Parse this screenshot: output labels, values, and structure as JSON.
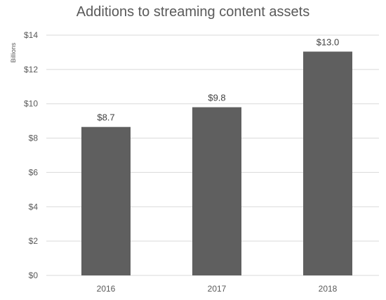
{
  "chart_data": {
    "type": "bar",
    "title": "Additions to streaming content assets",
    "ylabel": "Billions",
    "xlabel": "",
    "categories": [
      "2016",
      "2017",
      "2018"
    ],
    "values": [
      8.65,
      9.8,
      13.04
    ],
    "data_labels": [
      "$8.7",
      "$9.8",
      "$13.0"
    ],
    "ylim": [
      0,
      14
    ],
    "yticks": [
      0,
      2,
      4,
      6,
      8,
      10,
      12,
      14
    ],
    "ytick_labels": [
      "$0",
      "$2",
      "$4",
      "$6",
      "$8",
      "$10",
      "$12",
      "$14"
    ],
    "grid": true,
    "legend": "none",
    "colors": {
      "bar": "#5f5f5f",
      "grid": "#d9d9d9",
      "text": "#595959"
    }
  }
}
